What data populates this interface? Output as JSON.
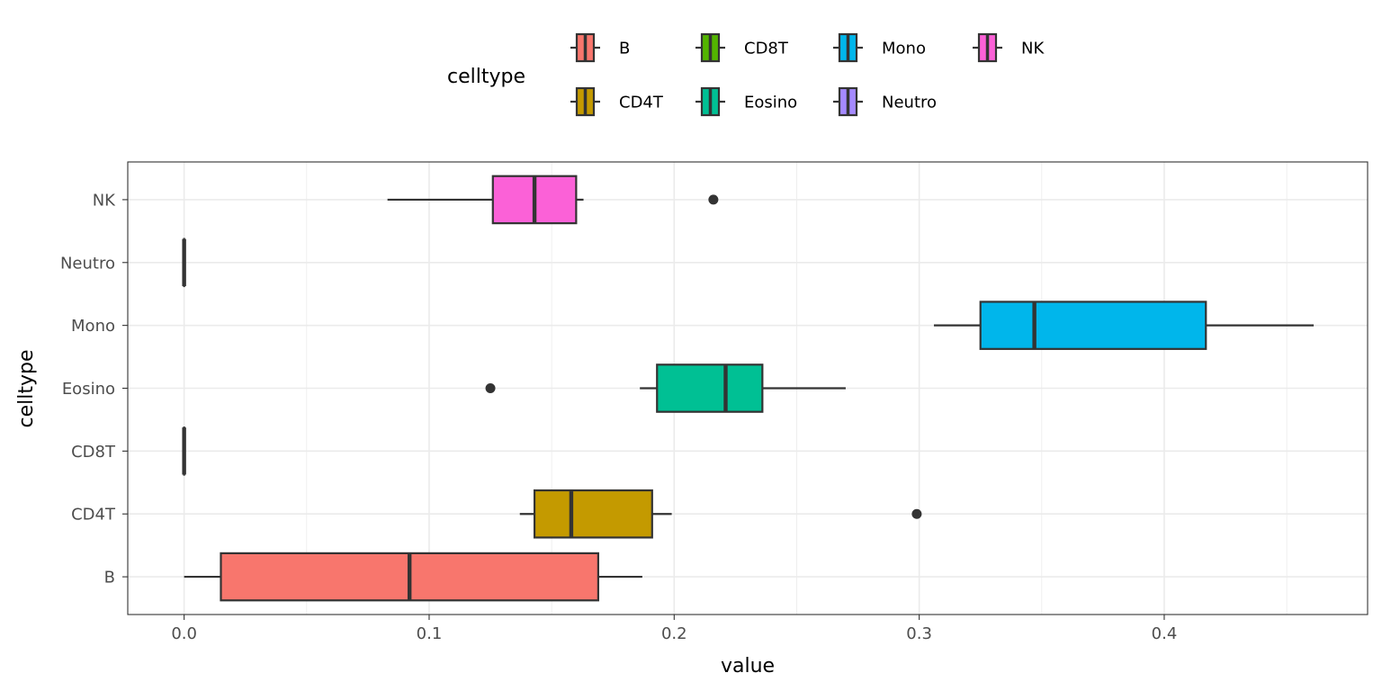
{
  "chart_data": {
    "type": "boxplot",
    "orientation": "horizontal",
    "xlabel": "value",
    "ylabel": "celltype",
    "xlim": [
      -0.023,
      0.483
    ],
    "x_ticks": [
      "0.0",
      "0.1",
      "0.2",
      "0.3",
      "0.4"
    ],
    "x_tick_values": [
      0.0,
      0.1,
      0.2,
      0.3,
      0.4
    ],
    "grid": true,
    "legend": {
      "title": "celltype",
      "position": "top",
      "entries": [
        "B",
        "CD4T",
        "CD8T",
        "Eosino",
        "Mono",
        "Neutro",
        "NK"
      ]
    },
    "categories": [
      "B",
      "CD4T",
      "CD8T",
      "Eosino",
      "Mono",
      "Neutro",
      "NK"
    ],
    "colors": {
      "B": "#F8766D",
      "CD4T": "#C49A00",
      "CD8T": "#53B400",
      "Eosino": "#00C094",
      "Mono": "#00B6EB",
      "Neutro": "#A58AFF",
      "NK": "#FB61D7"
    },
    "series": [
      {
        "category": "B",
        "whisker_low": 0.0,
        "q1": 0.015,
        "median": 0.092,
        "q3": 0.169,
        "whisker_high": 0.187,
        "outliers": []
      },
      {
        "category": "CD4T",
        "whisker_low": 0.137,
        "q1": 0.143,
        "median": 0.158,
        "q3": 0.191,
        "whisker_high": 0.199,
        "outliers": [
          0.299
        ]
      },
      {
        "category": "CD8T",
        "whisker_low": 0.0,
        "q1": 0.0,
        "median": 0.0,
        "q3": 0.0,
        "whisker_high": 0.0,
        "outliers": []
      },
      {
        "category": "Eosino",
        "whisker_low": 0.186,
        "q1": 0.193,
        "median": 0.221,
        "q3": 0.236,
        "whisker_high": 0.27,
        "outliers": [
          0.125
        ]
      },
      {
        "category": "Mono",
        "whisker_low": 0.306,
        "q1": 0.325,
        "median": 0.347,
        "q3": 0.417,
        "whisker_high": 0.461,
        "outliers": []
      },
      {
        "category": "Neutro",
        "whisker_low": 0.0,
        "q1": 0.0,
        "median": 0.0,
        "q3": 0.0,
        "whisker_high": 0.0,
        "outliers": []
      },
      {
        "category": "NK",
        "whisker_low": 0.083,
        "q1": 0.126,
        "median": 0.143,
        "q3": 0.16,
        "whisker_high": 0.163,
        "outliers": [
          0.216
        ]
      }
    ]
  }
}
